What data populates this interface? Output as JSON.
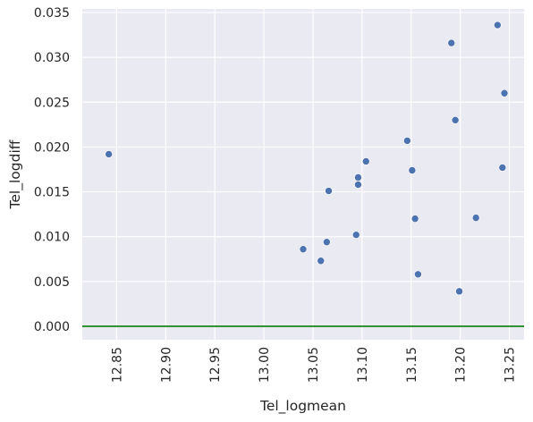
{
  "chart_data": {
    "type": "scatter",
    "xlabel": "Tel_logmean",
    "ylabel": "Tel_logdiff",
    "xlim": [
      12.815,
      13.265
    ],
    "ylim": [
      -0.0015,
      0.0354
    ],
    "x_ticks": [
      "12.85",
      "12.90",
      "12.95",
      "13.00",
      "13.05",
      "13.10",
      "13.15",
      "13.20",
      "13.25"
    ],
    "y_ticks": [
      "0.000",
      "0.005",
      "0.010",
      "0.015",
      "0.020",
      "0.025",
      "0.030",
      "0.035"
    ],
    "grid": true,
    "reference_line": {
      "y": 0.0,
      "color": "#008000"
    },
    "point_color": "#4c72b0",
    "background_color": "#eaeaf2",
    "points": [
      {
        "x": 12.842,
        "y": 0.0192
      },
      {
        "x": 13.04,
        "y": 0.0086
      },
      {
        "x": 13.058,
        "y": 0.0073
      },
      {
        "x": 13.064,
        "y": 0.0094
      },
      {
        "x": 13.066,
        "y": 0.0151
      },
      {
        "x": 13.094,
        "y": 0.0102
      },
      {
        "x": 13.096,
        "y": 0.0166
      },
      {
        "x": 13.096,
        "y": 0.0158
      },
      {
        "x": 13.104,
        "y": 0.0184
      },
      {
        "x": 13.146,
        "y": 0.0207
      },
      {
        "x": 13.151,
        "y": 0.0174
      },
      {
        "x": 13.154,
        "y": 0.012
      },
      {
        "x": 13.157,
        "y": 0.0058
      },
      {
        "x": 13.191,
        "y": 0.0316
      },
      {
        "x": 13.195,
        "y": 0.023
      },
      {
        "x": 13.199,
        "y": 0.0039
      },
      {
        "x": 13.216,
        "y": 0.0121
      },
      {
        "x": 13.238,
        "y": 0.0336
      },
      {
        "x": 13.243,
        "y": 0.0177
      },
      {
        "x": 13.245,
        "y": 0.026
      }
    ]
  }
}
